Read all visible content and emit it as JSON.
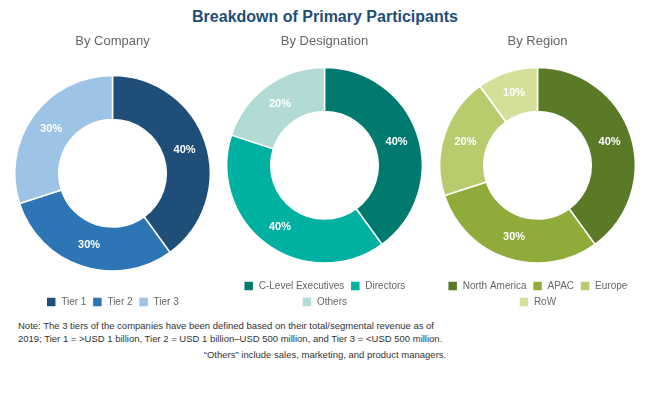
{
  "title": "Breakdown of Primary Participants",
  "annotations": [
    "Note: The 3 tiers of the companies have been defined based on their total/segmental revenue as of",
    "2019; Tier 1 = >USD 1 billion, Tier 2 = USD 1 billion–USD 500 million, and Tier 3 = <USD 500 million.",
    "“Others” include sales, marketing, and product managers."
  ],
  "chart_data": [
    {
      "type": "doughnut",
      "title": "By Company",
      "categories": [
        "Tier 1",
        "Tier 2",
        "Tier 3"
      ],
      "values": [
        40,
        30,
        30
      ],
      "value_labels": [
        "40%",
        "30%",
        "30%"
      ],
      "colors": [
        "#1f4e79",
        "#2e75b6",
        "#9dc3e6"
      ],
      "data_labels": true,
      "legend": "bottom"
    },
    {
      "type": "doughnut",
      "title": "By Designation",
      "categories": [
        "C-Level Executives",
        "Directors",
        "Others"
      ],
      "values": [
        40,
        40,
        20
      ],
      "value_labels": [
        "40%",
        "40%",
        "20%"
      ],
      "colors": [
        "#007a6e",
        "#00b0a0",
        "#b2dbd6"
      ],
      "data_labels": true,
      "legend": "bottom"
    },
    {
      "type": "doughnut",
      "title": "By Region",
      "categories": [
        "North America",
        "APAC",
        "Europe",
        "RoW"
      ],
      "values": [
        40,
        30,
        20,
        10
      ],
      "value_labels": [
        "40%",
        "30%",
        "20%",
        "10%"
      ],
      "colors": [
        "#5a7a28",
        "#8fac3a",
        "#b8cc6e",
        "#d4e09a"
      ],
      "data_labels": true,
      "legend": "bottom"
    }
  ]
}
